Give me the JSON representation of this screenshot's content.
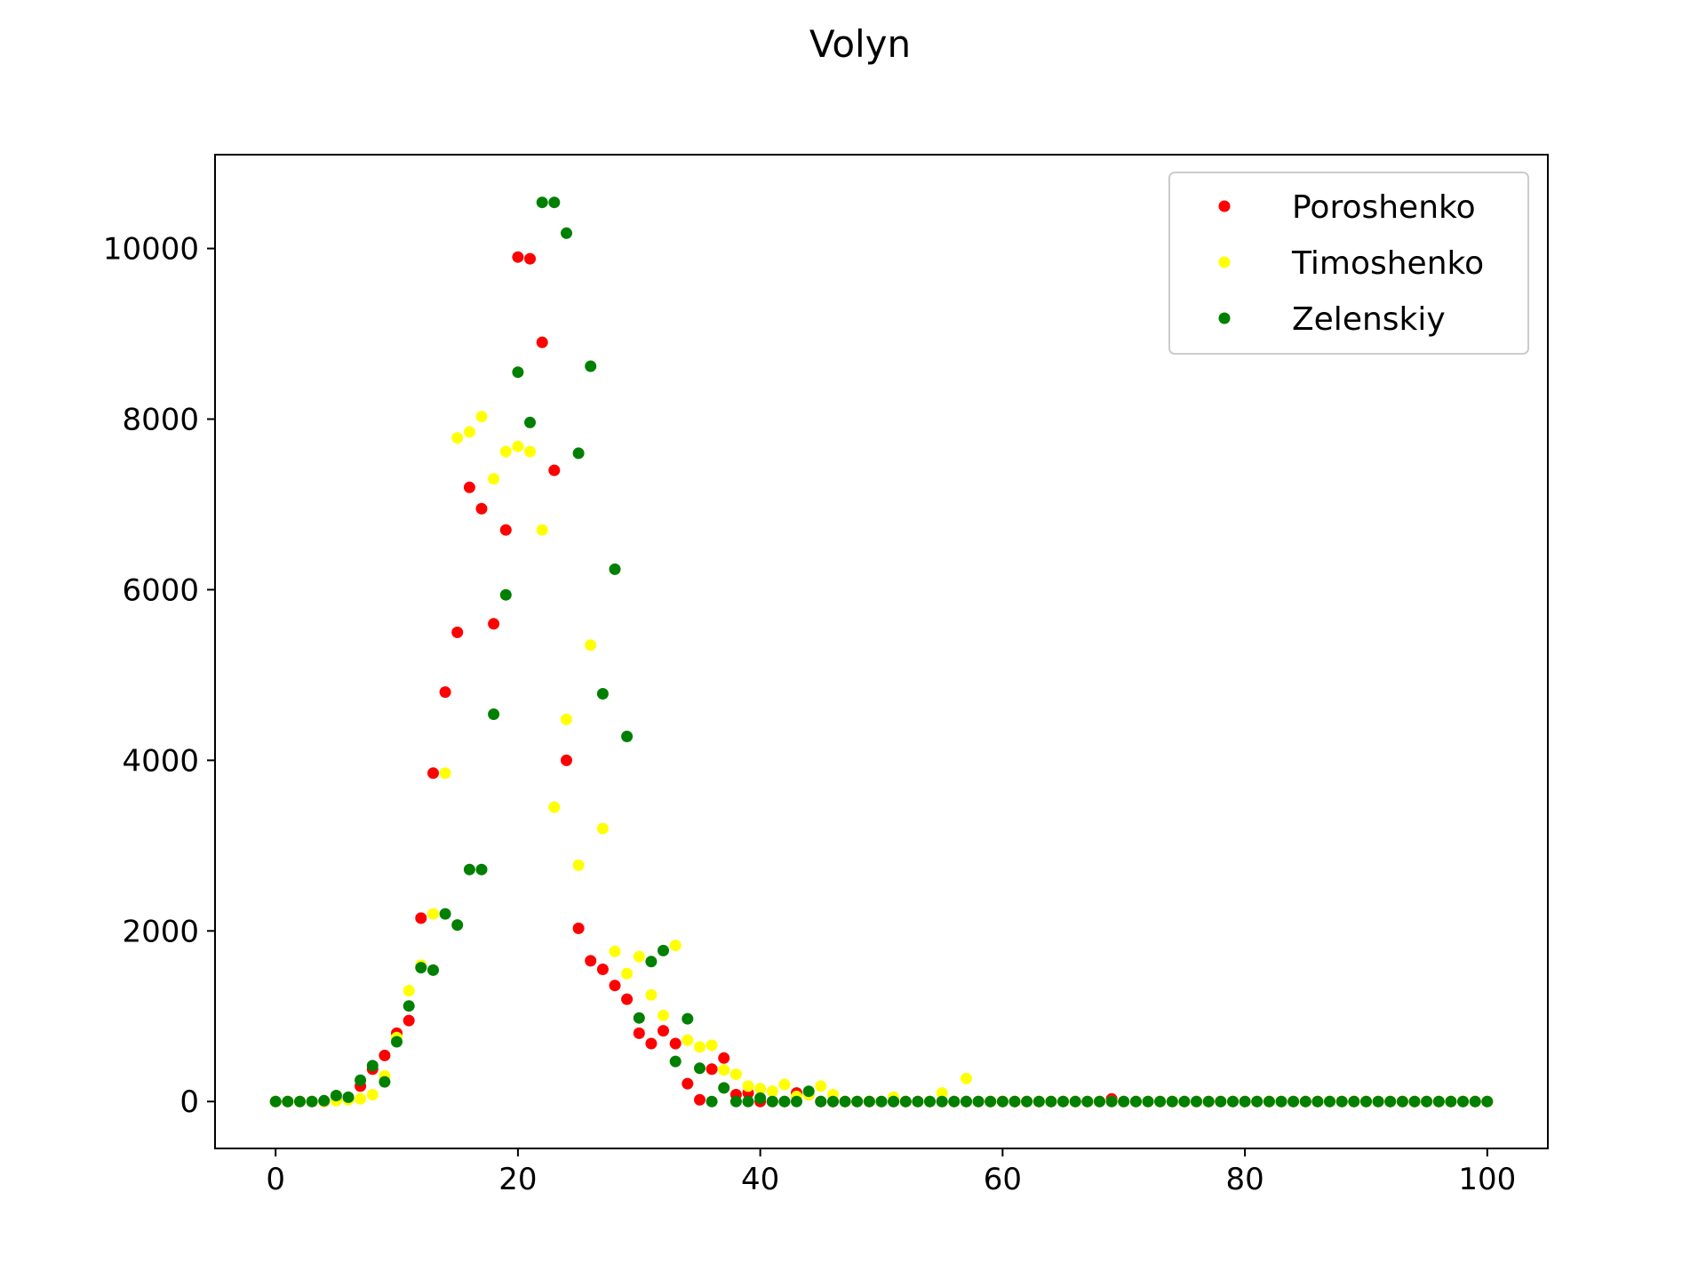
{
  "chart_data": {
    "type": "scatter",
    "title": "Volyn",
    "xlabel": "",
    "ylabel": "",
    "xlim": [
      -5,
      105
    ],
    "ylim": [
      -550,
      11100
    ],
    "xticks": [
      0,
      20,
      40,
      60,
      80,
      100
    ],
    "yticks": [
      0,
      2000,
      4000,
      6000,
      8000,
      10000
    ],
    "legend_position": "upper right",
    "grid": false,
    "series": [
      {
        "name": "Poroshenko",
        "color": "#ff0000",
        "points": [
          [
            0,
            0
          ],
          [
            1,
            0
          ],
          [
            2,
            0
          ],
          [
            3,
            0
          ],
          [
            4,
            0
          ],
          [
            5,
            20
          ],
          [
            6,
            30
          ],
          [
            7,
            180
          ],
          [
            8,
            380
          ],
          [
            9,
            540
          ],
          [
            10,
            800
          ],
          [
            11,
            950
          ],
          [
            12,
            2150
          ],
          [
            13,
            3850
          ],
          [
            14,
            4800
          ],
          [
            15,
            5500
          ],
          [
            16,
            7200
          ],
          [
            17,
            6950
          ],
          [
            18,
            5600
          ],
          [
            19,
            6700
          ],
          [
            20,
            9900
          ],
          [
            21,
            9880
          ],
          [
            22,
            8900
          ],
          [
            23,
            7400
          ],
          [
            24,
            4000
          ],
          [
            25,
            2030
          ],
          [
            26,
            1650
          ],
          [
            27,
            1550
          ],
          [
            28,
            1360
          ],
          [
            29,
            1200
          ],
          [
            30,
            800
          ],
          [
            31,
            680
          ],
          [
            32,
            830
          ],
          [
            33,
            680
          ],
          [
            34,
            210
          ],
          [
            35,
            20
          ],
          [
            36,
            380
          ],
          [
            37,
            510
          ],
          [
            38,
            80
          ],
          [
            39,
            100
          ],
          [
            40,
            0
          ],
          [
            41,
            0
          ],
          [
            42,
            0
          ],
          [
            43,
            100
          ],
          [
            44,
            80
          ],
          [
            45,
            0
          ],
          [
            46,
            0
          ],
          [
            47,
            0
          ],
          [
            48,
            0
          ],
          [
            49,
            0
          ],
          [
            50,
            0
          ],
          [
            51,
            0
          ],
          [
            52,
            0
          ],
          [
            53,
            0
          ],
          [
            54,
            0
          ],
          [
            55,
            0
          ],
          [
            56,
            0
          ],
          [
            57,
            0
          ],
          [
            58,
            0
          ],
          [
            59,
            0
          ],
          [
            60,
            0
          ],
          [
            61,
            0
          ],
          [
            62,
            0
          ],
          [
            63,
            0
          ],
          [
            64,
            0
          ],
          [
            65,
            0
          ],
          [
            66,
            0
          ],
          [
            67,
            0
          ],
          [
            68,
            0
          ],
          [
            69,
            30
          ],
          [
            70,
            0
          ],
          [
            71,
            0
          ],
          [
            72,
            0
          ],
          [
            73,
            0
          ],
          [
            74,
            0
          ],
          [
            75,
            0
          ],
          [
            76,
            0
          ],
          [
            77,
            0
          ],
          [
            78,
            0
          ],
          [
            79,
            0
          ],
          [
            80,
            0
          ],
          [
            81,
            0
          ],
          [
            82,
            0
          ],
          [
            83,
            0
          ],
          [
            84,
            0
          ],
          [
            85,
            0
          ],
          [
            86,
            0
          ],
          [
            87,
            0
          ],
          [
            88,
            0
          ],
          [
            89,
            0
          ],
          [
            90,
            0
          ],
          [
            91,
            0
          ],
          [
            92,
            0
          ],
          [
            93,
            0
          ],
          [
            94,
            0
          ],
          [
            95,
            0
          ],
          [
            96,
            0
          ],
          [
            97,
            0
          ],
          [
            98,
            0
          ],
          [
            99,
            0
          ],
          [
            100,
            0
          ]
        ]
      },
      {
        "name": "Timoshenko",
        "color": "#ffff00",
        "points": [
          [
            0,
            0
          ],
          [
            1,
            0
          ],
          [
            2,
            0
          ],
          [
            3,
            0
          ],
          [
            4,
            0
          ],
          [
            5,
            10
          ],
          [
            6,
            20
          ],
          [
            7,
            30
          ],
          [
            8,
            80
          ],
          [
            9,
            300
          ],
          [
            10,
            750
          ],
          [
            11,
            1300
          ],
          [
            12,
            1600
          ],
          [
            13,
            2200
          ],
          [
            14,
            3850
          ],
          [
            15,
            7780
          ],
          [
            16,
            7850
          ],
          [
            17,
            8030
          ],
          [
            18,
            7300
          ],
          [
            19,
            7620
          ],
          [
            20,
            7680
          ],
          [
            21,
            7620
          ],
          [
            22,
            6700
          ],
          [
            23,
            3450
          ],
          [
            24,
            4480
          ],
          [
            25,
            2770
          ],
          [
            26,
            5350
          ],
          [
            27,
            3200
          ],
          [
            28,
            1760
          ],
          [
            29,
            1500
          ],
          [
            30,
            1700
          ],
          [
            31,
            1250
          ],
          [
            32,
            1010
          ],
          [
            33,
            1830
          ],
          [
            34,
            720
          ],
          [
            35,
            640
          ],
          [
            36,
            660
          ],
          [
            37,
            370
          ],
          [
            38,
            320
          ],
          [
            39,
            180
          ],
          [
            40,
            150
          ],
          [
            41,
            120
          ],
          [
            42,
            200
          ],
          [
            43,
            60
          ],
          [
            44,
            80
          ],
          [
            45,
            180
          ],
          [
            46,
            80
          ],
          [
            47,
            0
          ],
          [
            48,
            0
          ],
          [
            49,
            0
          ],
          [
            50,
            0
          ],
          [
            51,
            50
          ],
          [
            52,
            0
          ],
          [
            53,
            0
          ],
          [
            54,
            0
          ],
          [
            55,
            100
          ],
          [
            56,
            0
          ],
          [
            57,
            270
          ],
          [
            58,
            0
          ],
          [
            59,
            0
          ],
          [
            60,
            0
          ],
          [
            61,
            0
          ],
          [
            62,
            0
          ],
          [
            63,
            0
          ],
          [
            64,
            0
          ],
          [
            65,
            0
          ],
          [
            66,
            0
          ],
          [
            67,
            0
          ],
          [
            68,
            0
          ],
          [
            69,
            0
          ],
          [
            70,
            0
          ],
          [
            71,
            0
          ],
          [
            72,
            0
          ],
          [
            73,
            0
          ],
          [
            74,
            0
          ],
          [
            75,
            0
          ],
          [
            76,
            0
          ],
          [
            77,
            0
          ],
          [
            78,
            0
          ],
          [
            79,
            0
          ],
          [
            80,
            0
          ],
          [
            81,
            0
          ],
          [
            82,
            0
          ],
          [
            83,
            0
          ],
          [
            84,
            0
          ],
          [
            85,
            0
          ],
          [
            86,
            0
          ],
          [
            87,
            0
          ],
          [
            88,
            0
          ],
          [
            89,
            0
          ],
          [
            90,
            0
          ],
          [
            91,
            0
          ],
          [
            92,
            0
          ],
          [
            93,
            0
          ],
          [
            94,
            0
          ],
          [
            95,
            0
          ],
          [
            96,
            0
          ],
          [
            97,
            0
          ],
          [
            98,
            0
          ],
          [
            99,
            0
          ],
          [
            100,
            0
          ]
        ]
      },
      {
        "name": "Zelenskiy",
        "color": "#008000",
        "points": [
          [
            0,
            0
          ],
          [
            1,
            0
          ],
          [
            2,
            0
          ],
          [
            3,
            0
          ],
          [
            4,
            10
          ],
          [
            5,
            70
          ],
          [
            6,
            50
          ],
          [
            7,
            250
          ],
          [
            8,
            420
          ],
          [
            9,
            230
          ],
          [
            10,
            700
          ],
          [
            11,
            1120
          ],
          [
            12,
            1570
          ],
          [
            13,
            1540
          ],
          [
            14,
            2200
          ],
          [
            15,
            2070
          ],
          [
            16,
            2720
          ],
          [
            17,
            2720
          ],
          [
            18,
            4540
          ],
          [
            19,
            5940
          ],
          [
            20,
            8550
          ],
          [
            21,
            7960
          ],
          [
            22,
            10540
          ],
          [
            23,
            10540
          ],
          [
            24,
            10180
          ],
          [
            25,
            7600
          ],
          [
            26,
            8620
          ],
          [
            27,
            4780
          ],
          [
            28,
            6240
          ],
          [
            29,
            4280
          ],
          [
            30,
            980
          ],
          [
            31,
            1640
          ],
          [
            32,
            1770
          ],
          [
            33,
            470
          ],
          [
            34,
            970
          ],
          [
            35,
            390
          ],
          [
            36,
            0
          ],
          [
            37,
            160
          ],
          [
            38,
            0
          ],
          [
            39,
            0
          ],
          [
            40,
            40
          ],
          [
            41,
            0
          ],
          [
            42,
            0
          ],
          [
            43,
            0
          ],
          [
            44,
            120
          ],
          [
            45,
            0
          ],
          [
            46,
            0
          ],
          [
            47,
            0
          ],
          [
            48,
            0
          ],
          [
            49,
            0
          ],
          [
            50,
            0
          ],
          [
            51,
            0
          ],
          [
            52,
            0
          ],
          [
            53,
            0
          ],
          [
            54,
            0
          ],
          [
            55,
            0
          ],
          [
            56,
            0
          ],
          [
            57,
            0
          ],
          [
            58,
            0
          ],
          [
            59,
            0
          ],
          [
            60,
            0
          ],
          [
            61,
            0
          ],
          [
            62,
            0
          ],
          [
            63,
            0
          ],
          [
            64,
            0
          ],
          [
            65,
            0
          ],
          [
            66,
            0
          ],
          [
            67,
            0
          ],
          [
            68,
            0
          ],
          [
            69,
            0
          ],
          [
            70,
            0
          ],
          [
            71,
            0
          ],
          [
            72,
            0
          ],
          [
            73,
            0
          ],
          [
            74,
            0
          ],
          [
            75,
            0
          ],
          [
            76,
            0
          ],
          [
            77,
            0
          ],
          [
            78,
            0
          ],
          [
            79,
            0
          ],
          [
            80,
            0
          ],
          [
            81,
            0
          ],
          [
            82,
            0
          ],
          [
            83,
            0
          ],
          [
            84,
            0
          ],
          [
            85,
            0
          ],
          [
            86,
            0
          ],
          [
            87,
            0
          ],
          [
            88,
            0
          ],
          [
            89,
            0
          ],
          [
            90,
            0
          ],
          [
            91,
            0
          ],
          [
            92,
            0
          ],
          [
            93,
            0
          ],
          [
            94,
            0
          ],
          [
            95,
            0
          ],
          [
            96,
            0
          ],
          [
            97,
            0
          ],
          [
            98,
            0
          ],
          [
            99,
            0
          ],
          [
            100,
            0
          ]
        ]
      }
    ]
  }
}
